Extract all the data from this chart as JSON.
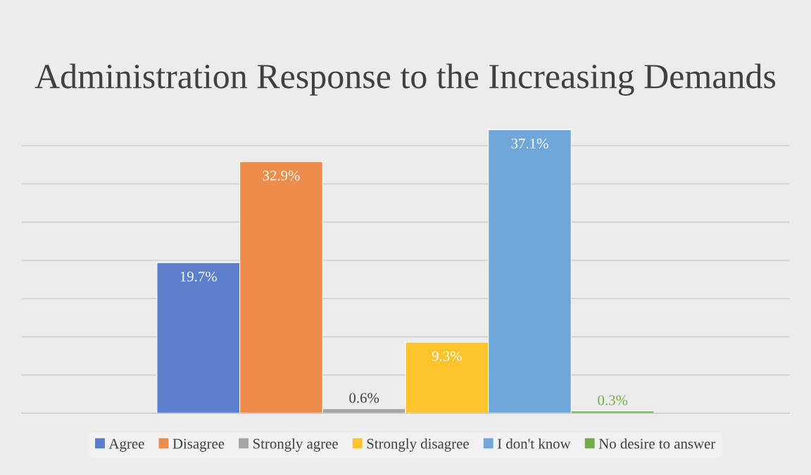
{
  "chart_data": {
    "type": "bar",
    "title": "Administration Response to the Increasing Demands",
    "categories": [
      null
    ],
    "series": [
      {
        "name": "Agree",
        "color": "#5b7fca",
        "values": [
          19.7
        ],
        "value_labels": [
          "19.7%"
        ]
      },
      {
        "name": "Disagree",
        "color": "#ee8c4c",
        "values": [
          32.9
        ],
        "value_labels": [
          "32.9%"
        ]
      },
      {
        "name": "Strongly agree",
        "color": "#a5a5a5",
        "values": [
          0.6
        ],
        "value_labels": [
          "0.6%"
        ]
      },
      {
        "name": "Strongly disagree",
        "color": "#fcc32a",
        "values": [
          9.3
        ],
        "value_labels": [
          "9.3%"
        ]
      },
      {
        "name": "I don't know",
        "color": "#6fa7db",
        "values": [
          37.1
        ],
        "value_labels": [
          "37.1%"
        ]
      },
      {
        "name": "No desire to answer",
        "color": "#70ad47",
        "values": [
          0.3
        ],
        "value_labels": [
          "0.3%"
        ]
      }
    ],
    "grid": "y",
    "legend": "bottom",
    "tick_labels": false
  }
}
